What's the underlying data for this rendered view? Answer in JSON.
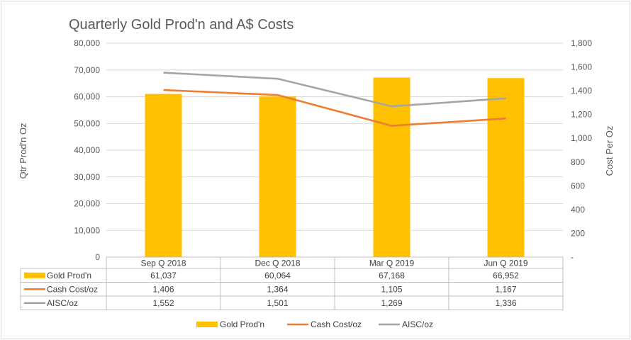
{
  "chart_data": {
    "type": "bar",
    "title": "Quarterly Gold Prod'n and A$ Costs",
    "categories": [
      "Sep Q 2018",
      "Dec Q 2018",
      "Mar Q 2019",
      "Jun Q  2019"
    ],
    "ylabel": "Qtr Prod'n Oz",
    "y2label": "Cost Per  Oz",
    "ylim": [
      0,
      80000
    ],
    "y2lim": [
      0,
      1800
    ],
    "yticks": [
      "0",
      "10,000",
      "20,000",
      "30,000",
      "40,000",
      "50,000",
      "60,000",
      "70,000",
      "80,000"
    ],
    "y2ticks": [
      "-",
      "200",
      "400",
      "600",
      "800",
      "1,000",
      "1,200",
      "1,400",
      "1,600",
      "1,800"
    ],
    "grid": true,
    "legend_position": "bottom",
    "series": [
      {
        "name": "Gold Prod'n",
        "type": "bar",
        "axis": "left",
        "color": "#FFC000",
        "values": [
          61037,
          60064,
          67168,
          66952
        ],
        "labels": [
          "61,037",
          "60,064",
          "67,168",
          "66,952"
        ]
      },
      {
        "name": "Cash Cost/oz",
        "type": "line",
        "axis": "right",
        "color": "#ED7D31",
        "values": [
          1406,
          1364,
          1105,
          1167
        ],
        "labels": [
          "1,406",
          "1,364",
          "1,105",
          "1,167"
        ]
      },
      {
        "name": "AISC/oz",
        "type": "line",
        "axis": "right",
        "color": "#A5A5A5",
        "values": [
          1552,
          1501,
          1269,
          1336
        ],
        "labels": [
          "1,552",
          "1,501",
          "1,269",
          "1,336"
        ]
      }
    ]
  }
}
